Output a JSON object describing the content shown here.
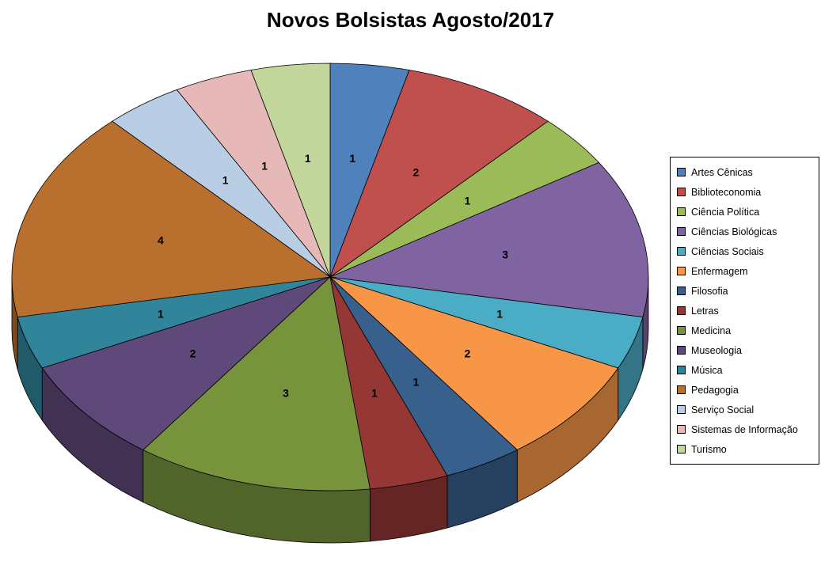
{
  "title": "Novos Bolsistas Agosto/2017",
  "chart_data": {
    "type": "pie",
    "style": "3d-pie",
    "title": "Novos Bolsistas Agosto/2017",
    "labels": "values",
    "legend_position": "right",
    "categories": [
      "Artes Cênicas",
      "Biblioteconomia",
      "Ciência Política",
      "Ciências Biológicas",
      "Ciências Sociais",
      "Enfermagem",
      "Filosofia",
      "Letras",
      "Medicina",
      "Museologia",
      "Música",
      "Pedagogia",
      "Serviço Social",
      "Sistemas de Informação",
      "Turismo"
    ],
    "values": [
      1,
      2,
      1,
      3,
      1,
      2,
      1,
      1,
      3,
      2,
      1,
      4,
      1,
      1,
      1
    ],
    "colors": [
      "#4F81BD",
      "#C0504D",
      "#9BBB59",
      "#8064A2",
      "#4BACC6",
      "#F79646",
      "#38608C",
      "#953735",
      "#77933C",
      "#5F497A",
      "#31859B",
      "#B96F2D",
      "#B9CDE5",
      "#E6B9B8",
      "#C3D69B"
    ]
  }
}
